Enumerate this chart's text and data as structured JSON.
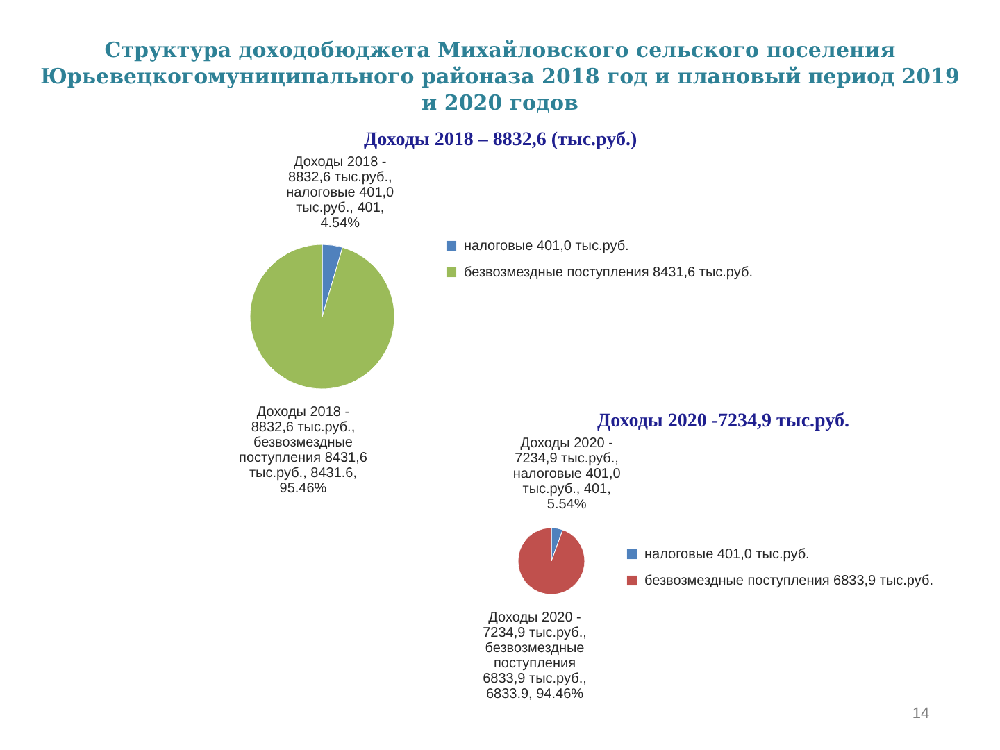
{
  "chart_data": [
    {
      "type": "other",
      "title": "Структура доходобюджета Михайловского сельского поселения Юрьевецкогомуниципального районаза 2018 год и плановый период 2019 и 2020 годов",
      "annotations": [
        "14"
      ]
    },
    {
      "type": "pie",
      "title": "Доходы 2018 – 8832,6 (тыс.руб.)",
      "categories": [
        "налоговые 401,0 тыс.руб.",
        "безвозмездные поступления 8431,6 тыс.руб."
      ],
      "values": [
        401,
        8431.6
      ],
      "colors": [
        "#4f81bd",
        "#9bbb59"
      ],
      "value_labels": [
        "Доходы 2018 - 8832,6 тыс.руб., налоговые 401,0 тыс.руб., 401, 4.54%",
        "Доходы 2018 - 8832,6 тыс.руб., безвозмездные поступления 8431,6 тыс.руб., 8431.6, 95.46%"
      ],
      "legend": "right"
    },
    {
      "type": "pie",
      "title": "Доходы 2020 -7234,9 тыс.руб.",
      "categories": [
        "налоговые 401,0 тыс.руб.",
        "безвозмездные поступления 6833,9 тыс.руб."
      ],
      "values": [
        401,
        6833.9
      ],
      "colors": [
        "#4f81bd",
        "#c0504d"
      ],
      "value_labels": [
        "Доходы 2020 - 7234,9 тыс.руб., налоговые 401,0 тыс.руб., 401, 5.54%",
        "Доходы 2020 - 7234,9 тыс.руб., безвозмездные поступления 6833,9 тыс.руб., 6833.9, 94.46%"
      ],
      "legend": "right"
    }
  ]
}
